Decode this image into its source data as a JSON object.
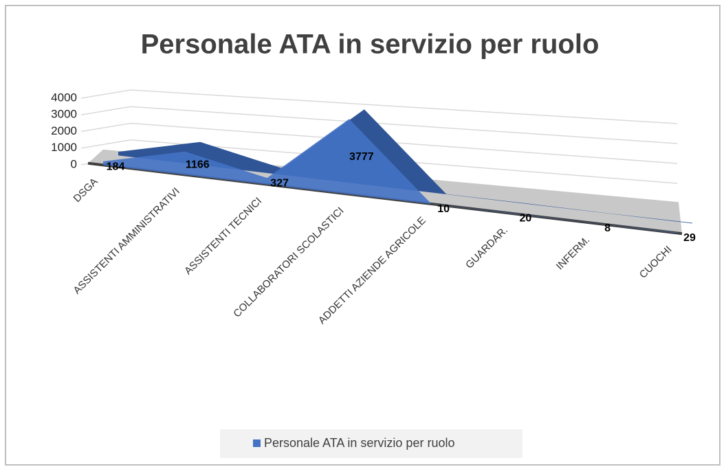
{
  "chart_data": {
    "type": "area3d",
    "title": "Personale ATA in servizio per ruolo",
    "categories": [
      "DSGA",
      "ASSISTENTI AMMINISTRATIVI",
      "ASSISTENTI TECNICI",
      "COLLABORATORI SCOLASTICI",
      "ADDETTI AZIENDE AGRICOLE",
      "GUARDAR.",
      "INFERM.",
      "CUOCHI"
    ],
    "series": [
      {
        "name": "Personale ATA in servizio per ruolo",
        "color": "#4472c4",
        "values": [
          184,
          1166,
          327,
          3777,
          10,
          20,
          8,
          29
        ]
      }
    ],
    "ylim": [
      0,
      4000
    ],
    "yticks": [
      0,
      1000,
      2000,
      3000,
      4000
    ],
    "grid": true,
    "legend": "bottom"
  }
}
